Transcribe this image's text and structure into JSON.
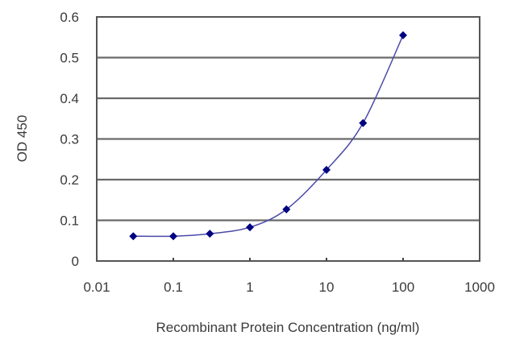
{
  "chart_data": {
    "type": "line",
    "title": "",
    "xlabel": "Recombinant Protein Concentration (ng/ml)",
    "ylabel": "OD 450",
    "xscale": "log",
    "xlim": [
      0.01,
      1000
    ],
    "ylim": [
      0,
      0.6
    ],
    "x_ticks": [
      "0.01",
      "0.1",
      "1",
      "10",
      "100",
      "1000"
    ],
    "y_ticks": [
      "0",
      "0.1",
      "0.2",
      "0.3",
      "0.4",
      "0.5",
      "0.6"
    ],
    "grid": "horizontal",
    "legend": null,
    "series": [
      {
        "name": "OD 450",
        "color": "#000080",
        "line_color": "#4a4aa8",
        "marker": "diamond",
        "x": [
          0.03,
          0.1,
          0.3,
          1,
          3,
          10,
          30,
          100
        ],
        "values": [
          0.061,
          0.061,
          0.067,
          0.083,
          0.127,
          0.224,
          0.339,
          0.555
        ]
      }
    ]
  }
}
